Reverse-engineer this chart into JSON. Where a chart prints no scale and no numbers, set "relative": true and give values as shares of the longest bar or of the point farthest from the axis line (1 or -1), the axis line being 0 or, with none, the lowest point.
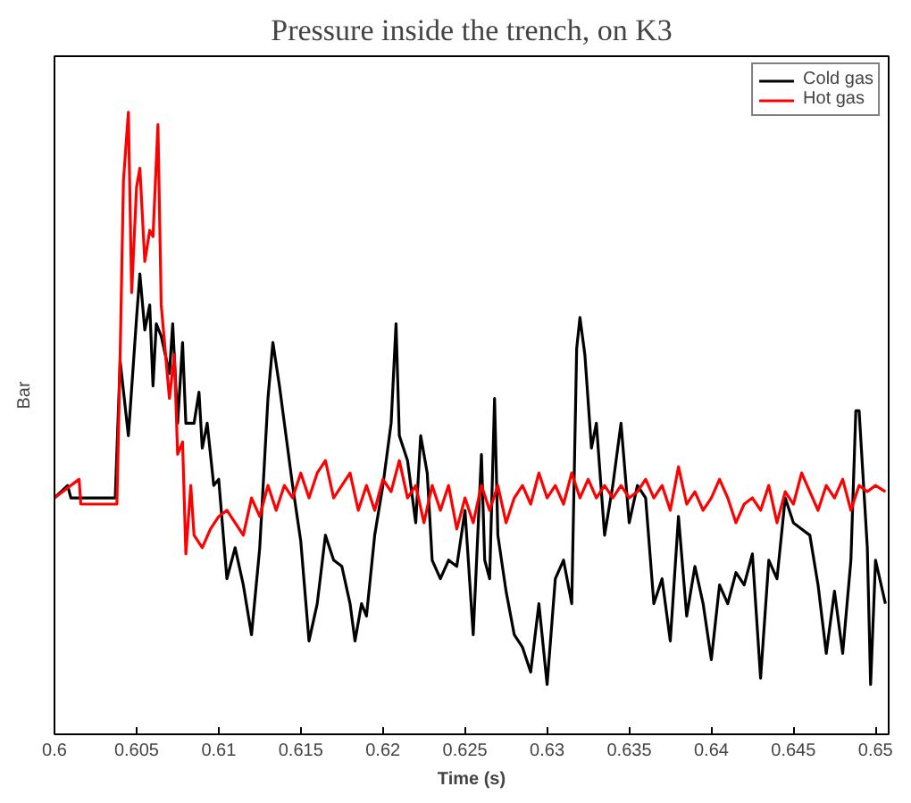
{
  "chart_data": {
    "type": "line",
    "title": "Pressure inside the trench, on K3",
    "xlabel": "Time (s)",
    "ylabel": "Bar",
    "relative": true,
    "legend": "top right",
    "grid": false,
    "xlim": [
      0.6,
      0.6508
    ],
    "xticks": [
      0.6,
      0.605,
      0.61,
      0.615,
      0.62,
      0.625,
      0.63,
      0.635,
      0.64,
      0.645,
      0.65
    ],
    "series": [
      {
        "name": "Cold gas",
        "color": "#000000",
        "x": [
          0.6,
          0.6008,
          0.601,
          0.6037,
          0.604,
          0.6045,
          0.605,
          0.6052,
          0.6055,
          0.6058,
          0.606,
          0.6062,
          0.6065,
          0.607,
          0.6072,
          0.6075,
          0.6078,
          0.608,
          0.6085,
          0.6088,
          0.609,
          0.6093,
          0.6097,
          0.61,
          0.6105,
          0.611,
          0.6115,
          0.612,
          0.6125,
          0.613,
          0.6133,
          0.6137,
          0.614,
          0.6145,
          0.615,
          0.6155,
          0.616,
          0.6165,
          0.617,
          0.6175,
          0.618,
          0.6183,
          0.6187,
          0.619,
          0.6195,
          0.62,
          0.6205,
          0.6208,
          0.621,
          0.6215,
          0.622,
          0.6223,
          0.6227,
          0.623,
          0.6235,
          0.624,
          0.6245,
          0.625,
          0.6255,
          0.626,
          0.6262,
          0.6265,
          0.6268,
          0.627,
          0.6275,
          0.628,
          0.6285,
          0.629,
          0.6295,
          0.63,
          0.6305,
          0.631,
          0.6315,
          0.6318,
          0.632,
          0.6323,
          0.6327,
          0.633,
          0.6335,
          0.634,
          0.6345,
          0.635,
          0.6355,
          0.636,
          0.6365,
          0.637,
          0.6375,
          0.638,
          0.6385,
          0.639,
          0.6395,
          0.64,
          0.6405,
          0.641,
          0.6415,
          0.642,
          0.6425,
          0.643,
          0.6435,
          0.644,
          0.6445,
          0.645,
          0.6455,
          0.646,
          0.6465,
          0.647,
          0.6475,
          0.648,
          0.6485,
          0.6488,
          0.649,
          0.6495,
          0.6497,
          0.65,
          0.6506
        ],
        "values": [
          0.38,
          0.4,
          0.38,
          0.38,
          0.6,
          0.48,
          0.67,
          0.74,
          0.65,
          0.69,
          0.56,
          0.66,
          0.64,
          0.58,
          0.66,
          0.5,
          0.63,
          0.5,
          0.5,
          0.55,
          0.46,
          0.5,
          0.4,
          0.41,
          0.25,
          0.3,
          0.24,
          0.16,
          0.3,
          0.54,
          0.63,
          0.56,
          0.5,
          0.4,
          0.31,
          0.15,
          0.21,
          0.32,
          0.28,
          0.27,
          0.21,
          0.15,
          0.21,
          0.19,
          0.32,
          0.4,
          0.5,
          0.66,
          0.48,
          0.44,
          0.34,
          0.48,
          0.42,
          0.28,
          0.25,
          0.28,
          0.27,
          0.36,
          0.16,
          0.45,
          0.28,
          0.25,
          0.54,
          0.32,
          0.23,
          0.16,
          0.14,
          0.1,
          0.21,
          0.08,
          0.25,
          0.28,
          0.21,
          0.62,
          0.67,
          0.61,
          0.46,
          0.5,
          0.32,
          0.4,
          0.5,
          0.34,
          0.4,
          0.38,
          0.21,
          0.25,
          0.15,
          0.35,
          0.19,
          0.27,
          0.21,
          0.12,
          0.24,
          0.21,
          0.26,
          0.24,
          0.29,
          0.09,
          0.28,
          0.25,
          0.38,
          0.34,
          0.33,
          0.32,
          0.24,
          0.13,
          0.23,
          0.13,
          0.28,
          0.52,
          0.52,
          0.3,
          0.08,
          0.28,
          0.21
        ]
      },
      {
        "name": "Hot gas",
        "color": "#ff0000",
        "x": [
          0.6,
          0.6015,
          0.6016,
          0.6038,
          0.604,
          0.6042,
          0.6045,
          0.6047,
          0.605,
          0.6052,
          0.6055,
          0.6058,
          0.606,
          0.6063,
          0.6065,
          0.607,
          0.6073,
          0.6075,
          0.6078,
          0.608,
          0.6083,
          0.6085,
          0.609,
          0.6095,
          0.61,
          0.6105,
          0.611,
          0.6115,
          0.612,
          0.6125,
          0.613,
          0.6135,
          0.614,
          0.6145,
          0.615,
          0.6155,
          0.616,
          0.6165,
          0.617,
          0.6175,
          0.618,
          0.6185,
          0.619,
          0.6195,
          0.62,
          0.6205,
          0.621,
          0.6215,
          0.622,
          0.6225,
          0.623,
          0.6235,
          0.624,
          0.6245,
          0.625,
          0.6255,
          0.626,
          0.6265,
          0.627,
          0.6275,
          0.628,
          0.6285,
          0.629,
          0.6295,
          0.63,
          0.6305,
          0.631,
          0.6315,
          0.632,
          0.6325,
          0.633,
          0.6335,
          0.634,
          0.6345,
          0.635,
          0.6355,
          0.636,
          0.6365,
          0.637,
          0.6375,
          0.638,
          0.6385,
          0.639,
          0.6395,
          0.64,
          0.6405,
          0.641,
          0.6415,
          0.642,
          0.6425,
          0.643,
          0.6435,
          0.644,
          0.6445,
          0.645,
          0.6455,
          0.646,
          0.6465,
          0.647,
          0.6475,
          0.648,
          0.6485,
          0.649,
          0.6495,
          0.65,
          0.6506
        ],
        "values": [
          0.38,
          0.41,
          0.37,
          0.37,
          0.61,
          0.89,
          1.0,
          0.71,
          0.88,
          0.91,
          0.76,
          0.81,
          0.8,
          0.98,
          0.69,
          0.54,
          0.61,
          0.45,
          0.47,
          0.29,
          0.4,
          0.32,
          0.3,
          0.33,
          0.35,
          0.36,
          0.34,
          0.32,
          0.38,
          0.35,
          0.4,
          0.36,
          0.4,
          0.38,
          0.42,
          0.38,
          0.42,
          0.44,
          0.38,
          0.4,
          0.42,
          0.36,
          0.4,
          0.36,
          0.41,
          0.39,
          0.44,
          0.38,
          0.4,
          0.34,
          0.4,
          0.36,
          0.4,
          0.33,
          0.38,
          0.34,
          0.4,
          0.36,
          0.4,
          0.34,
          0.38,
          0.4,
          0.37,
          0.42,
          0.38,
          0.4,
          0.37,
          0.42,
          0.38,
          0.41,
          0.38,
          0.4,
          0.38,
          0.4,
          0.38,
          0.39,
          0.41,
          0.38,
          0.4,
          0.36,
          0.43,
          0.37,
          0.39,
          0.36,
          0.38,
          0.41,
          0.38,
          0.34,
          0.37,
          0.38,
          0.36,
          0.4,
          0.34,
          0.39,
          0.37,
          0.42,
          0.39,
          0.36,
          0.4,
          0.38,
          0.41,
          0.36,
          0.4,
          0.39,
          0.4,
          0.39
        ]
      }
    ]
  }
}
